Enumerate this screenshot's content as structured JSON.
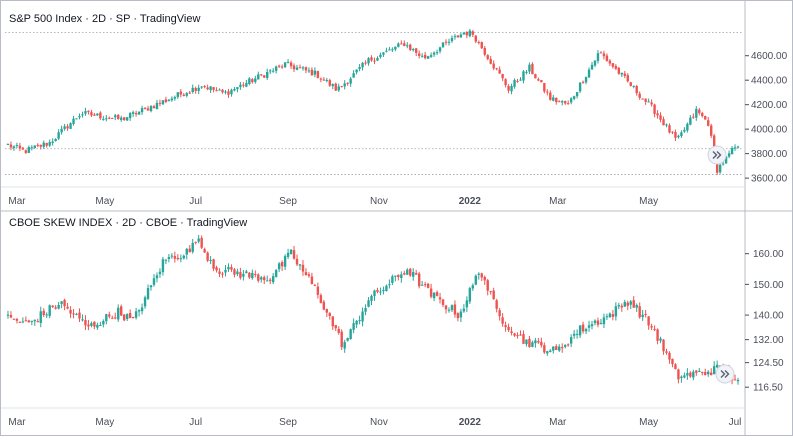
{
  "chart_data": [
    {
      "type": "candlestick",
      "title": "S&P 500 Index · 2D · SP  · TradingView",
      "x_ticks": [
        "Mar",
        "May",
        "Jul",
        "Sep",
        "Nov",
        "2022",
        "Mar",
        "May"
      ],
      "y_ticks": [
        3600,
        3800,
        4000,
        4200,
        4400,
        4600
      ],
      "y_tick_labels": [
        "3600.00",
        "3800.00",
        "4000.00",
        "4200.00",
        "4400.00",
        "4600.00"
      ],
      "ylim": [
        3560,
        4900
      ],
      "reference_lines": [
        4790,
        3840,
        3630
      ],
      "grid": false,
      "keypoints": [
        {
          "x": "2021-02-25",
          "y": 3870
        },
        {
          "x": "2021-03-08",
          "y": 3820
        },
        {
          "x": "2021-03-25",
          "y": 3890
        },
        {
          "x": "2021-04-15",
          "y": 4130
        },
        {
          "x": "2021-05-12",
          "y": 4080
        },
        {
          "x": "2021-06-10",
          "y": 4230
        },
        {
          "x": "2021-07-05",
          "y": 4360
        },
        {
          "x": "2021-07-20",
          "y": 4290
        },
        {
          "x": "2021-08-30",
          "y": 4530
        },
        {
          "x": "2021-09-20",
          "y": 4450
        },
        {
          "x": "2021-10-04",
          "y": 4320
        },
        {
          "x": "2021-10-25",
          "y": 4560
        },
        {
          "x": "2021-11-18",
          "y": 4700
        },
        {
          "x": "2021-12-01",
          "y": 4580
        },
        {
          "x": "2021-12-28",
          "y": 4790
        },
        {
          "x": "2022-01-03",
          "y": 4780
        },
        {
          "x": "2022-01-27",
          "y": 4330
        },
        {
          "x": "2022-02-10",
          "y": 4500
        },
        {
          "x": "2022-02-24",
          "y": 4250
        },
        {
          "x": "2022-03-08",
          "y": 4200
        },
        {
          "x": "2022-03-29",
          "y": 4630
        },
        {
          "x": "2022-04-12",
          "y": 4450
        },
        {
          "x": "2022-05-05",
          "y": 4150
        },
        {
          "x": "2022-05-20",
          "y": 3900
        },
        {
          "x": "2022-06-02",
          "y": 4150
        },
        {
          "x": "2022-06-10",
          "y": 4050
        },
        {
          "x": "2022-06-16",
          "y": 3670
        },
        {
          "x": "2022-06-28",
          "y": 3850
        },
        {
          "x": "2022-07-01",
          "y": 3830
        }
      ]
    },
    {
      "type": "candlestick",
      "title": "CBOE SKEW INDEX · 2D · CBOE · TradingView",
      "x_ticks": [
        "Mar",
        "May",
        "Jul",
        "Sep",
        "Nov",
        "2022",
        "Mar",
        "May",
        "Jul"
      ],
      "y_ticks": [
        116.5,
        124.5,
        132,
        140,
        150,
        160
      ],
      "y_tick_labels": [
        "116.50",
        "124.50",
        "132.00",
        "140.00",
        "150.00",
        "160.00"
      ],
      "ylim": [
        112,
        170
      ],
      "grid": false,
      "keypoints": [
        {
          "x": "2021-02-25",
          "y": 139
        },
        {
          "x": "2021-03-10",
          "y": 137
        },
        {
          "x": "2021-04-01",
          "y": 144
        },
        {
          "x": "2021-04-20",
          "y": 136
        },
        {
          "x": "2021-05-10",
          "y": 141
        },
        {
          "x": "2021-05-20",
          "y": 138
        },
        {
          "x": "2021-06-10",
          "y": 158
        },
        {
          "x": "2021-06-28",
          "y": 161
        },
        {
          "x": "2021-07-01",
          "y": 165
        },
        {
          "x": "2021-07-15",
          "y": 155
        },
        {
          "x": "2021-08-05",
          "y": 153
        },
        {
          "x": "2021-08-20",
          "y": 152
        },
        {
          "x": "2021-09-03",
          "y": 160
        },
        {
          "x": "2021-09-20",
          "y": 148
        },
        {
          "x": "2021-10-08",
          "y": 130
        },
        {
          "x": "2021-10-25",
          "y": 145
        },
        {
          "x": "2021-11-20",
          "y": 155
        },
        {
          "x": "2021-12-05",
          "y": 147
        },
        {
          "x": "2021-12-25",
          "y": 140
        },
        {
          "x": "2022-01-08",
          "y": 155
        },
        {
          "x": "2022-01-20",
          "y": 140
        },
        {
          "x": "2022-02-05",
          "y": 132
        },
        {
          "x": "2022-02-28",
          "y": 128
        },
        {
          "x": "2022-03-15",
          "y": 135
        },
        {
          "x": "2022-04-05",
          "y": 140
        },
        {
          "x": "2022-04-18",
          "y": 145
        },
        {
          "x": "2022-05-05",
          "y": 135
        },
        {
          "x": "2022-05-20",
          "y": 120
        },
        {
          "x": "2022-06-05",
          "y": 121
        },
        {
          "x": "2022-06-20",
          "y": 123
        },
        {
          "x": "2022-07-01",
          "y": 117
        }
      ]
    }
  ],
  "colors": {
    "up": "#26a69a",
    "down": "#ef5350",
    "text": "#131722",
    "axis": "#4a4e58",
    "border": "#b8bcc6",
    "dotted": "#9aa0ab"
  },
  "scroll_button_icon": "double-chevron-right-icon"
}
